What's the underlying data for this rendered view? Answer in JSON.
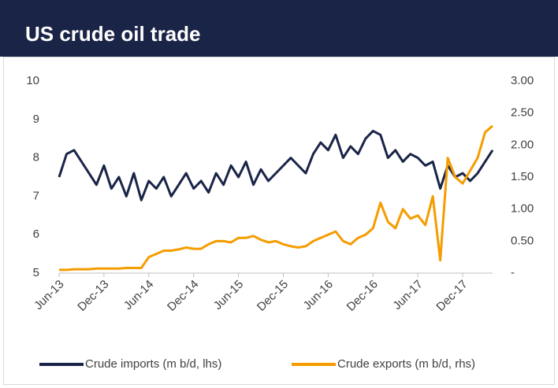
{
  "chart_data": {
    "type": "line",
    "title": "US crude oil trade",
    "categories": [
      "Jun-13",
      null,
      null,
      null,
      null,
      null,
      "Dec-13",
      null,
      null,
      null,
      null,
      null,
      "Jun-14",
      null,
      null,
      null,
      null,
      null,
      "Dec-14",
      null,
      null,
      null,
      null,
      null,
      "Jun-15",
      null,
      null,
      null,
      null,
      null,
      "Dec-15",
      null,
      null,
      null,
      null,
      null,
      "Jun-16",
      null,
      null,
      null,
      null,
      null,
      "Dec-16",
      null,
      null,
      null,
      null,
      null,
      "Jun-17",
      null,
      null,
      null,
      null,
      null,
      "Dec-17",
      null,
      null,
      null,
      null
    ],
    "series": [
      {
        "name": "Crude imports (m b/d, lhs)",
        "color": "#1a2447",
        "axis": "y",
        "values": [
          7.5,
          8.1,
          8.2,
          7.9,
          7.6,
          7.3,
          7.8,
          7.2,
          7.5,
          7.0,
          7.6,
          6.9,
          7.4,
          7.2,
          7.5,
          7.0,
          7.3,
          7.6,
          7.2,
          7.4,
          7.1,
          7.6,
          7.3,
          7.8,
          7.5,
          7.9,
          7.3,
          7.7,
          7.4,
          7.6,
          7.8,
          8.0,
          7.8,
          7.6,
          8.1,
          8.4,
          8.2,
          8.6,
          8.0,
          8.3,
          8.1,
          8.5,
          8.7,
          8.6,
          8.0,
          8.2,
          7.9,
          8.1,
          8.0,
          7.8,
          7.9,
          7.2,
          7.8,
          7.5,
          7.6,
          7.4,
          7.6,
          7.9,
          8.2
        ]
      },
      {
        "name": "Crude exports (m b/d, rhs)",
        "color": "#f59c00",
        "axis": "y2",
        "values": [
          0.05,
          0.05,
          0.06,
          0.06,
          0.06,
          0.07,
          0.07,
          0.07,
          0.07,
          0.08,
          0.08,
          0.08,
          0.25,
          0.3,
          0.35,
          0.35,
          0.37,
          0.4,
          0.38,
          0.38,
          0.45,
          0.5,
          0.5,
          0.48,
          0.55,
          0.55,
          0.58,
          0.52,
          0.48,
          0.5,
          0.45,
          0.42,
          0.4,
          0.42,
          0.5,
          0.55,
          0.6,
          0.65,
          0.5,
          0.45,
          0.55,
          0.6,
          0.7,
          1.1,
          0.8,
          0.7,
          1.0,
          0.85,
          0.9,
          0.75,
          1.2,
          0.2,
          1.8,
          1.5,
          1.4,
          1.6,
          1.8,
          2.2,
          2.3
        ]
      }
    ],
    "ylim": [
      5,
      10
    ],
    "yticks": [
      5,
      6,
      7,
      8,
      9,
      10
    ],
    "y2lim": [
      0,
      3
    ],
    "y2ticks": [
      {
        "value": 0,
        "label": "-"
      },
      {
        "value": 0.5,
        "label": "0.50"
      },
      {
        "value": 1,
        "label": "1.00"
      },
      {
        "value": 1.5,
        "label": "1.50"
      },
      {
        "value": 2,
        "label": "2.00"
      },
      {
        "value": 2.5,
        "label": "2.50"
      },
      {
        "value": 3,
        "label": "3.00"
      }
    ],
    "legend": "bottom"
  }
}
